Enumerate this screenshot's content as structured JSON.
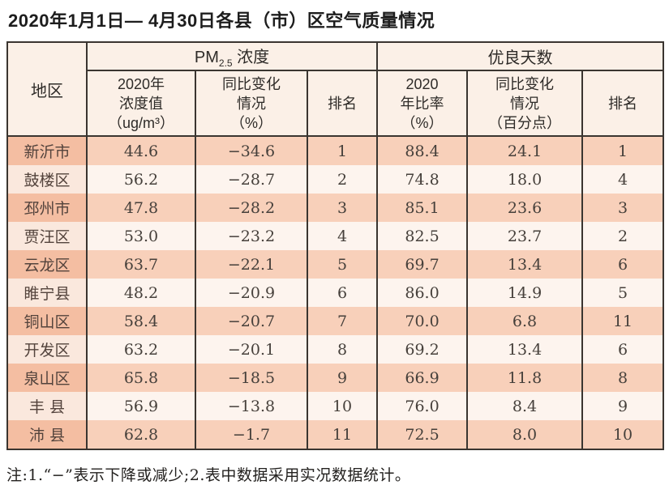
{
  "page": {
    "title": "2020年1月1日— 4月30日各县（市）区空气质量情况",
    "footnote": "注:1.“−”表示下降或减少;2.表中数据采用实况数据统计。"
  },
  "chart_data": {
    "type": "table",
    "title": "2020年1月1日— 4月30日各县（市）区空气质量情况",
    "header": {
      "region": "地区",
      "pm_group": {
        "prefix": "PM",
        "sub": "2.5",
        "suffix": " 浓度"
      },
      "good_group": "优良天数",
      "pm_value": "2020年\n浓度值\n（ug/m³）",
      "pm_change": "同比变化\n情况\n（%）",
      "pm_rank": "排名",
      "good_rate": "2020\n年比率\n（%）",
      "good_change": "同比变化\n情况\n（百分点）",
      "good_rank": "排名"
    },
    "columns_order": [
      "region",
      "pm_value",
      "pm_change",
      "pm_rank",
      "good_rate",
      "good_change",
      "good_rank"
    ],
    "rows": [
      [
        "新沂市",
        "44.6",
        "−34.6",
        "1",
        "88.4",
        "24.1",
        "1"
      ],
      [
        "鼓楼区",
        "56.2",
        "−28.7",
        "2",
        "74.8",
        "18.0",
        "4"
      ],
      [
        "邳州市",
        "47.8",
        "−28.2",
        "3",
        "85.1",
        "23.6",
        "3"
      ],
      [
        "贾汪区",
        "53.0",
        "−23.2",
        "4",
        "82.5",
        "23.7",
        "2"
      ],
      [
        "云龙区",
        "63.7",
        "−22.1",
        "5",
        "69.7",
        "13.4",
        "6"
      ],
      [
        "睢宁县",
        "48.2",
        "−20.9",
        "6",
        "86.0",
        "14.9",
        "5"
      ],
      [
        "铜山区",
        "58.4",
        "−20.7",
        "7",
        "70.0",
        "6.8",
        "11"
      ],
      [
        "开发区",
        "63.2",
        "−20.1",
        "8",
        "69.2",
        "13.4",
        "6"
      ],
      [
        "泉山区",
        "65.8",
        "−18.5",
        "9",
        "66.9",
        "11.8",
        "8"
      ],
      [
        "丰 县",
        "56.9",
        "−13.8",
        "10",
        "76.0",
        "8.4",
        "9"
      ],
      [
        "沛 县",
        "62.8",
        "−1.7",
        "11",
        "72.5",
        "8.0",
        "10"
      ]
    ]
  },
  "colors": {
    "border": "#3a3530",
    "header_bg": "#fbf0e7",
    "odd_row_region_bg": "#f4bea2",
    "odd_row_bg": "#f8d0ba",
    "even_row_region_bg": "#fae8dd",
    "even_row_bg": "#fdf4ee",
    "text": "#46403b"
  }
}
